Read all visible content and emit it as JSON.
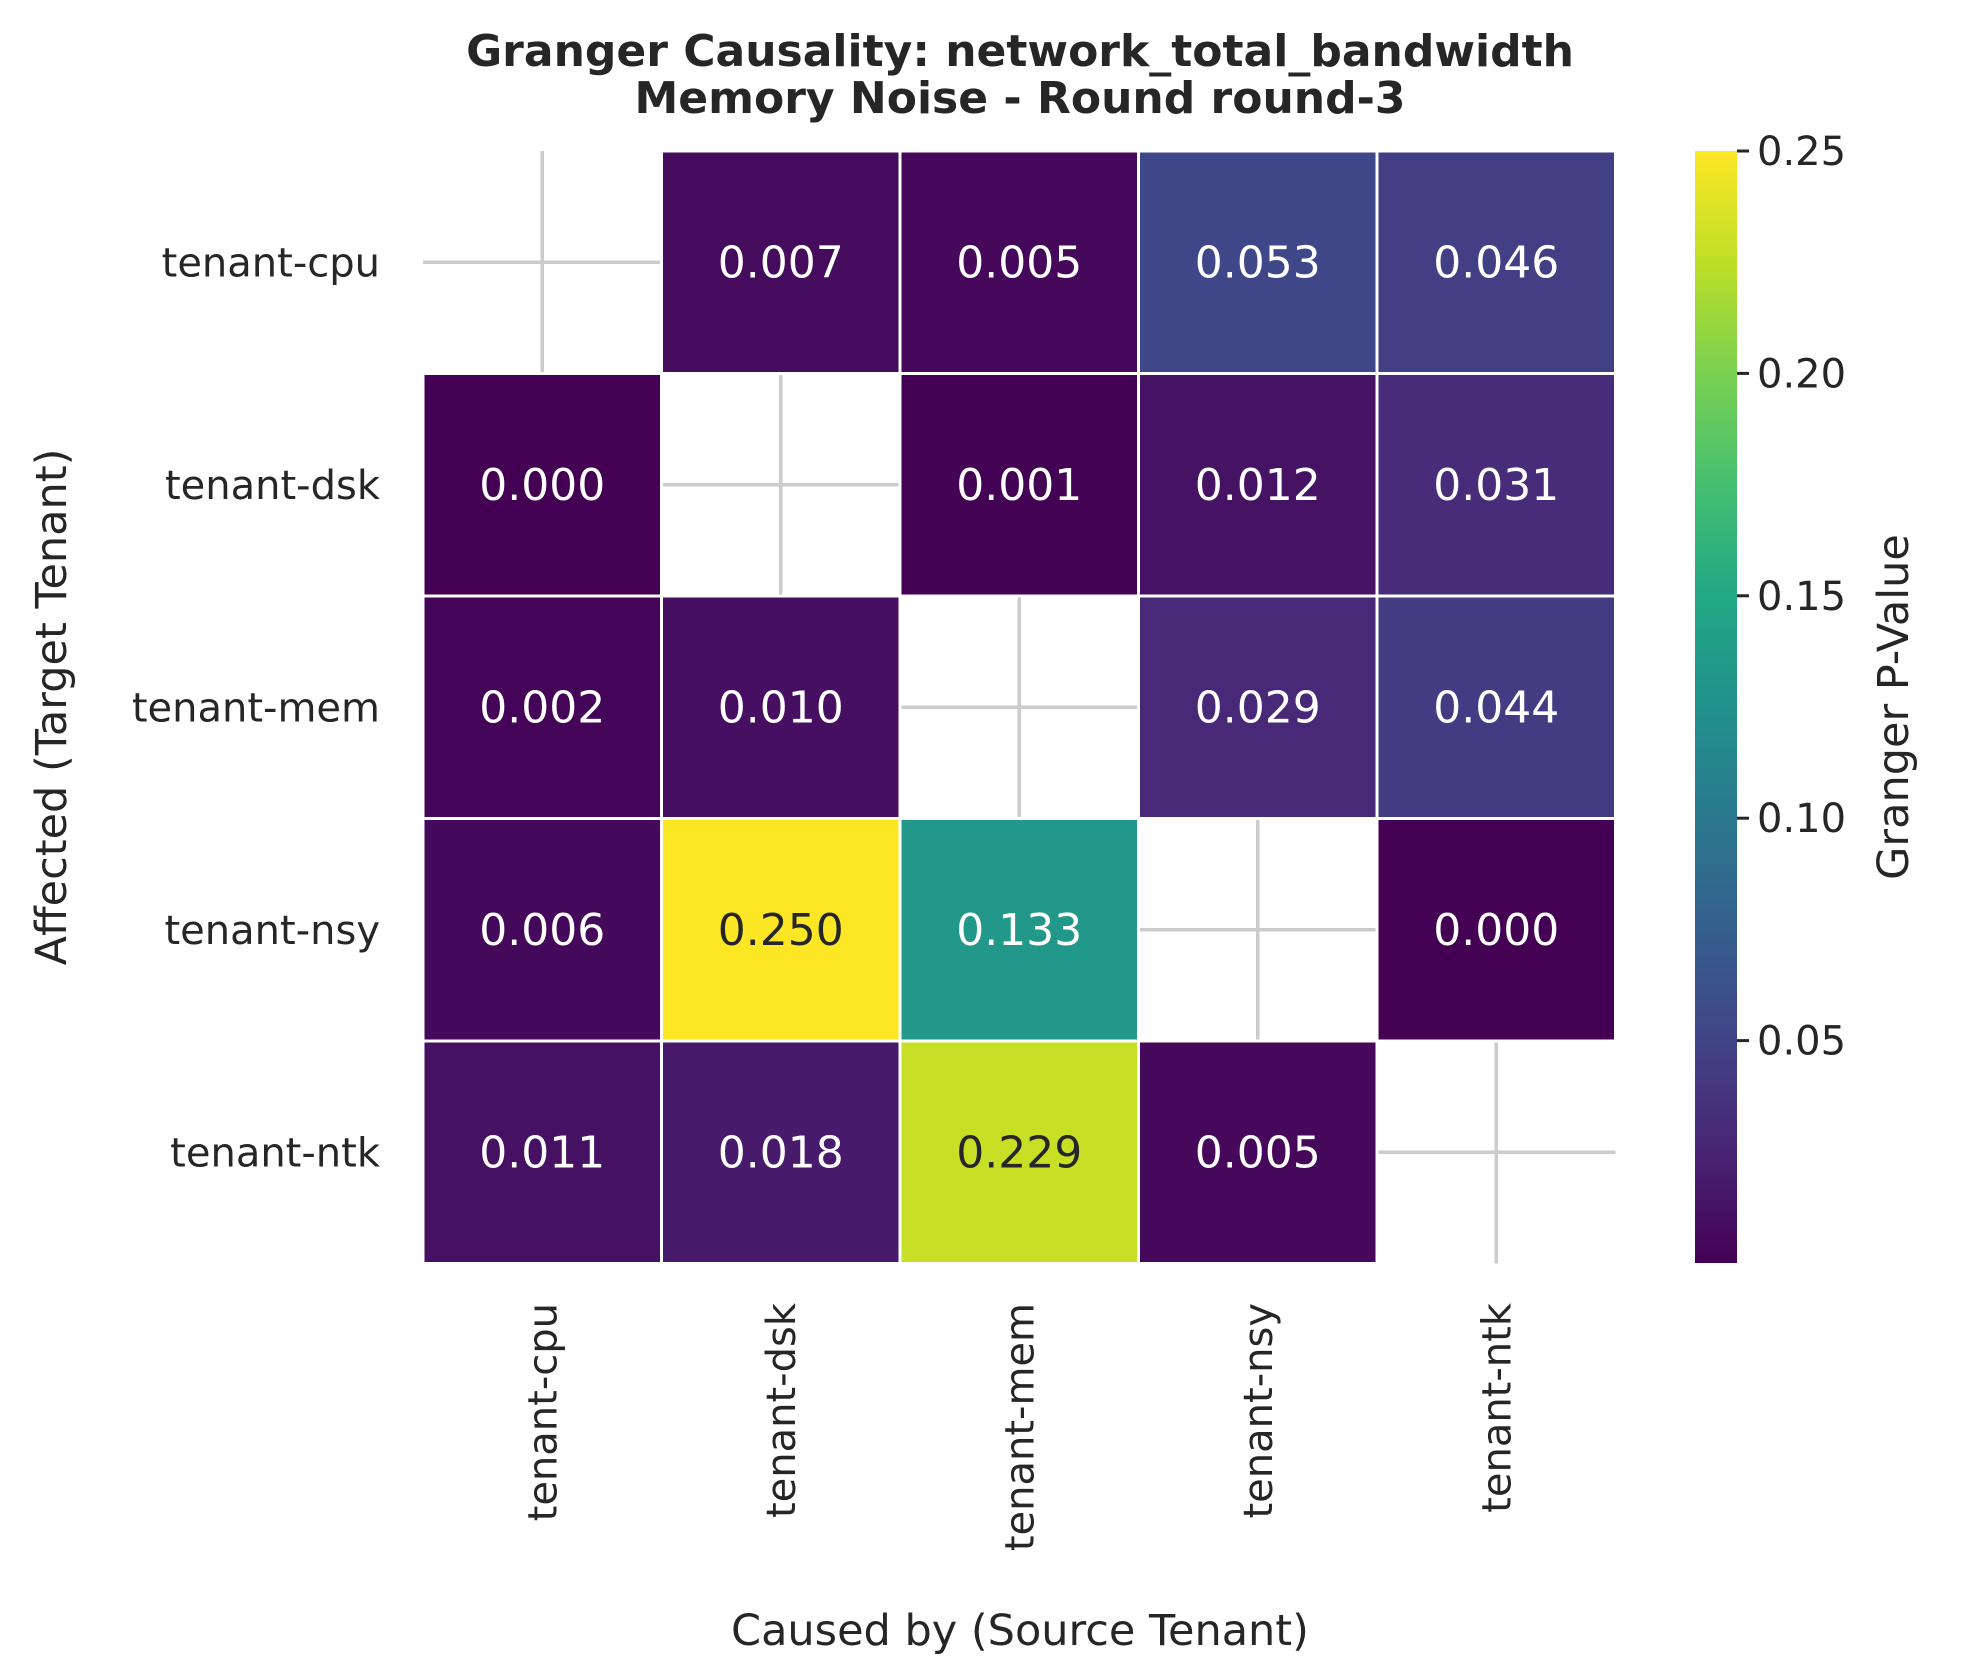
{
  "chart_data": {
    "type": "heatmap",
    "title_lines": [
      "Granger Causality: network_total_bandwidth",
      "Memory Noise - Round round-3"
    ],
    "xlabel": "Caused by (Source Tenant)",
    "ylabel": "Affected (Target Tenant)",
    "x_categories": [
      "tenant-cpu",
      "tenant-dsk",
      "tenant-mem",
      "tenant-nsy",
      "tenant-ntk"
    ],
    "y_categories": [
      "tenant-cpu",
      "tenant-dsk",
      "tenant-mem",
      "tenant-nsy",
      "tenant-ntk"
    ],
    "values": [
      [
        null,
        0.007,
        0.005,
        0.053,
        0.046
      ],
      [
        0.0,
        null,
        0.001,
        0.012,
        0.031
      ],
      [
        0.002,
        0.01,
        null,
        0.029,
        0.044
      ],
      [
        0.006,
        0.25,
        0.133,
        null,
        0.0
      ],
      [
        0.011,
        0.018,
        0.229,
        0.005,
        null
      ]
    ],
    "annotations": [
      [
        "",
        "0.007",
        "0.005",
        "0.053",
        "0.046"
      ],
      [
        "0.000",
        "",
        "0.001",
        "0.012",
        "0.031"
      ],
      [
        "0.002",
        "0.010",
        "",
        "0.029",
        "0.044"
      ],
      [
        "0.006",
        "0.250",
        "0.133",
        "",
        "0.000"
      ],
      [
        "0.011",
        "0.018",
        "0.229",
        "0.005",
        ""
      ]
    ],
    "colormap": "viridis",
    "colorbar": {
      "label": "Granger P-Value",
      "vmin": 0.0,
      "vmax": 0.25,
      "ticks": [
        0.05,
        0.1,
        0.15,
        0.2,
        0.25
      ],
      "tick_labels": [
        "0.05",
        "0.10",
        "0.15",
        "0.20",
        "0.25"
      ]
    },
    "diagonal_masked": true,
    "grid": true
  }
}
